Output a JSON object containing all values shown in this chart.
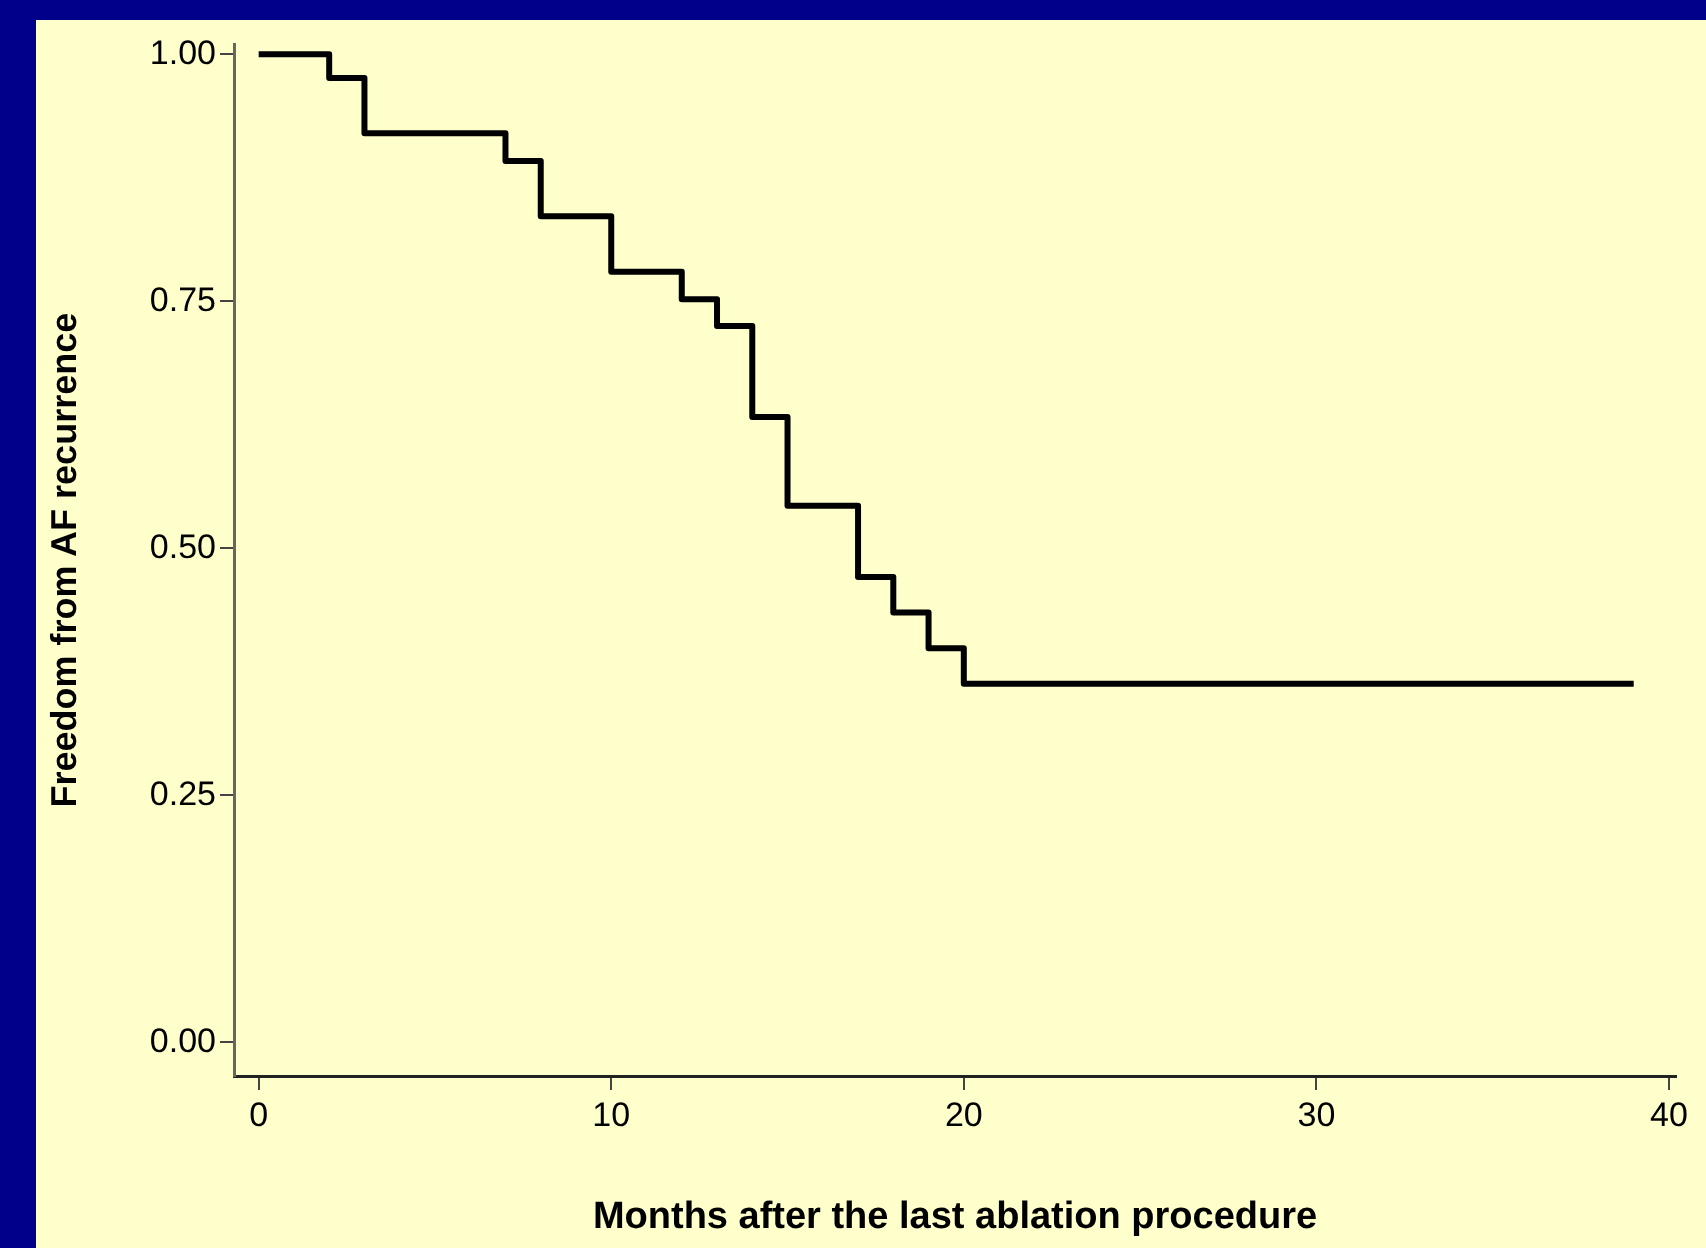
{
  "chart_data": {
    "type": "step",
    "xlabel": "Months after the last ablation procedure",
    "ylabel": "Freedom from AF recurrence",
    "x": [
      0,
      2,
      3,
      7,
      8,
      10,
      12,
      13,
      14,
      15,
      17,
      18,
      19,
      20,
      39
    ],
    "values": [
      1,
      0.976,
      0.92,
      0.892,
      0.836,
      0.78,
      0.752,
      0.725,
      0.633,
      0.543,
      0.471,
      0.435,
      0.399,
      0.363,
      0.363
    ],
    "color": "#000000",
    "xlim": [
      -0.7,
      40.2
    ],
    "xticks": [
      0,
      10,
      20,
      30,
      40
    ],
    "ylim": [
      -0.034,
      1.01
    ],
    "yticks": [
      {
        "value": 0,
        "label": "0.00"
      },
      {
        "value": 0.25,
        "label": "0.25"
      },
      {
        "value": 0.5,
        "label": "0.50"
      },
      {
        "value": 0.75,
        "label": "0.75"
      },
      {
        "value": 1,
        "label": "1.00"
      }
    ],
    "grid": false,
    "legend": false
  }
}
